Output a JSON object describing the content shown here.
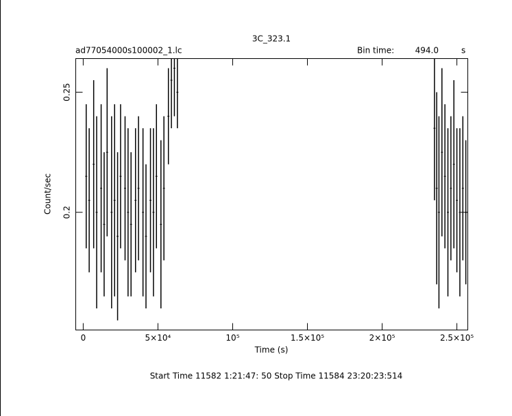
{
  "chart_data": {
    "type": "errorbar",
    "title": "3C_323.1",
    "subtitle": "ad77054000s100002_1.lc",
    "bin_label": "Bin time:",
    "bin_value": "494.0",
    "bin_unit": "s",
    "x_label": "Time (s)",
    "y_label": "Count/sec",
    "footer": "Start Time 11582  1:21:47: 50    Stop Time 11584 23:20:23:514",
    "color": "#000000",
    "xlim": [
      -5000,
      257300
    ],
    "ylim": [
      0.151,
      0.264
    ],
    "xticks": [
      0,
      {
        "value": 50000,
        "label": "5×10⁴"
      },
      {
        "value": 100000,
        "label": "10⁵"
      },
      {
        "value": 150000,
        "label": "1.5×10⁵"
      },
      {
        "value": 200000,
        "label": "2×10⁵"
      },
      {
        "value": 250000,
        "label": "2.5×10⁵"
      }
    ],
    "yticks": [
      0.2,
      0.25
    ],
    "x": [
      2000,
      4000,
      7000,
      9000,
      12000,
      14000,
      16000,
      19000,
      21000,
      23000,
      25000,
      28000,
      30000,
      32000,
      35000,
      37000,
      40000,
      42000,
      45000,
      47000,
      49000,
      52000,
      54000,
      57000,
      59000,
      61000,
      63000,
      235000,
      236500,
      238000,
      240000,
      242000,
      244000,
      246000,
      248000,
      250000,
      252000,
      254000,
      256000
    ],
    "values": [
      0.215,
      0.205,
      0.22,
      0.2,
      0.21,
      0.195,
      0.225,
      0.2,
      0.205,
      0.19,
      0.215,
      0.21,
      0.2,
      0.195,
      0.205,
      0.21,
      0.2,
      0.19,
      0.205,
      0.2,
      0.215,
      0.195,
      0.21,
      0.24,
      0.255,
      0.26,
      0.25,
      0.235,
      0.21,
      0.2,
      0.225,
      0.215,
      0.2,
      0.21,
      0.22,
      0.205,
      0.2,
      0.21,
      0.2
    ],
    "errors": [
      0.03,
      0.03,
      0.035,
      0.04,
      0.035,
      0.03,
      0.035,
      0.04,
      0.04,
      0.035,
      0.03,
      0.03,
      0.035,
      0.03,
      0.03,
      0.03,
      0.035,
      0.03,
      0.03,
      0.035,
      0.03,
      0.035,
      0.03,
      0.02,
      0.02,
      0.02,
      0.015,
      0.03,
      0.04,
      0.04,
      0.035,
      0.03,
      0.035,
      0.03,
      0.035,
      0.03,
      0.035,
      0.03,
      0.03
    ]
  }
}
